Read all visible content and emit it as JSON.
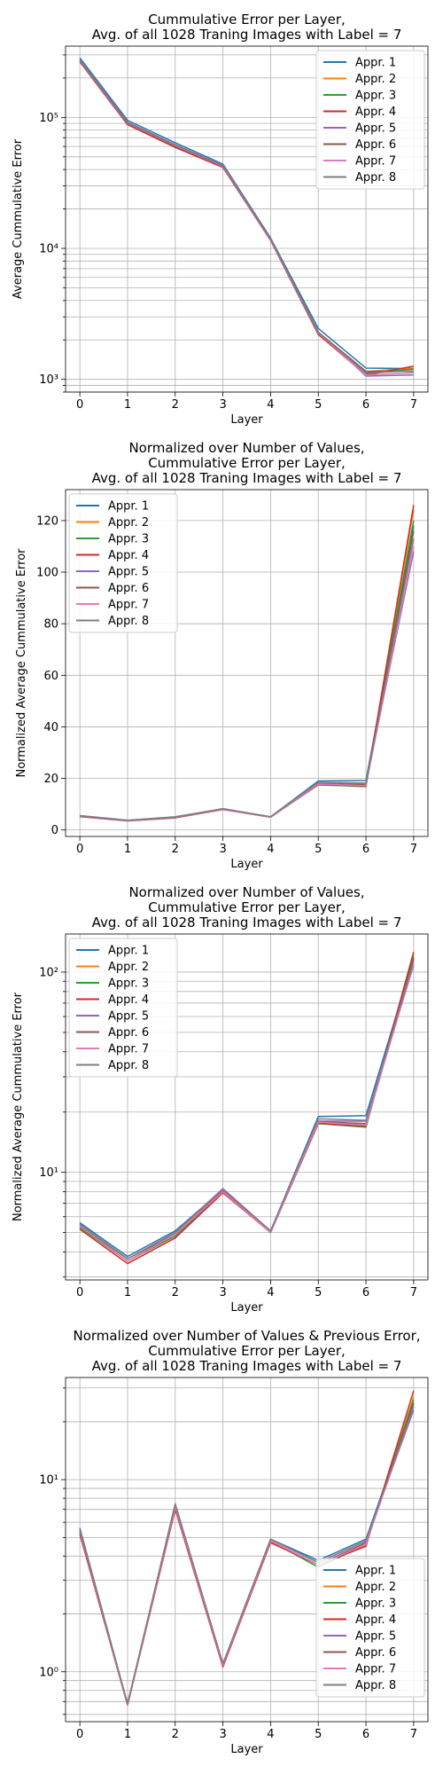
{
  "chart_data": [
    {
      "type": "line",
      "title": "Cummulative Error per Layer,\nAvg. of all 1028 Traning Images with Label = 7",
      "xlabel": "Layer",
      "ylabel": "Average Cummulative Error",
      "yscale": "log",
      "ylim": [
        800,
        350000
      ],
      "xlim": [
        -0.3,
        7.3
      ],
      "grid": true,
      "legend": "upper right",
      "x": [
        0,
        1,
        2,
        3,
        4,
        5,
        6,
        7
      ],
      "xticks": [
        "0",
        "1",
        "2",
        "3",
        "4",
        "5",
        "6",
        "7"
      ],
      "yticks": [
        {
          "value": 1000,
          "label": "10³"
        },
        {
          "value": 10000,
          "label": "10⁴"
        },
        {
          "value": 100000,
          "label": "10⁵"
        }
      ],
      "series": [
        {
          "name": "Appr. 1",
          "values": [
            285000,
            95000,
            64000,
            44000,
            12000,
            2450,
            1220,
            1210
          ]
        },
        {
          "name": "Appr. 2",
          "values": [
            275000,
            90000,
            61000,
            43000,
            11800,
            2300,
            1150,
            1220
          ]
        },
        {
          "name": "Appr. 3",
          "values": [
            270000,
            89000,
            60000,
            42000,
            11600,
            2250,
            1100,
            1200
          ]
        },
        {
          "name": "Appr. 4",
          "values": [
            265000,
            88000,
            59000,
            41500,
            11500,
            2200,
            1080,
            1260
          ]
        },
        {
          "name": "Appr. 5",
          "values": [
            275000,
            92000,
            62000,
            43000,
            11800,
            2300,
            1060,
            1080
          ]
        },
        {
          "name": "Appr. 6",
          "values": [
            272000,
            91000,
            61500,
            42500,
            11700,
            2280,
            1150,
            1150
          ]
        },
        {
          "name": "Appr. 7",
          "values": [
            270000,
            90000,
            61000,
            42200,
            11600,
            2250,
            1080,
            1120
          ]
        },
        {
          "name": "Appr. 8",
          "values": [
            272000,
            90500,
            61500,
            42500,
            11700,
            2270,
            1120,
            1160
          ]
        }
      ]
    },
    {
      "type": "line",
      "title": "Normalized over Number of Values,\nCummulative Error per Layer,\nAvg. of all 1028 Traning Images with Label = 7",
      "xlabel": "Layer",
      "ylabel": "Normalized Average Cummulative Error",
      "yscale": "linear",
      "ylim": [
        -2.5,
        132
      ],
      "xlim": [
        -0.3,
        7.3
      ],
      "grid": true,
      "legend": "upper left",
      "x": [
        0,
        1,
        2,
        3,
        4,
        5,
        6,
        7
      ],
      "xticks": [
        "0",
        "1",
        "2",
        "3",
        "4",
        "5",
        "6",
        "7"
      ],
      "yticks": [
        {
          "value": 0,
          "label": "0"
        },
        {
          "value": 20,
          "label": "20"
        },
        {
          "value": 40,
          "label": "40"
        },
        {
          "value": 60,
          "label": "60"
        },
        {
          "value": 80,
          "label": "80"
        },
        {
          "value": 100,
          "label": "100"
        },
        {
          "value": 120,
          "label": "120"
        }
      ],
      "series": [
        {
          "name": "Appr. 1",
          "values": [
            5.6,
            3.8,
            5.1,
            8.2,
            5.1,
            19.0,
            19.2,
            118
          ]
        },
        {
          "name": "Appr. 2",
          "values": [
            5.4,
            3.6,
            4.9,
            8.0,
            5.0,
            17.8,
            17.0,
            124
          ]
        },
        {
          "name": "Appr. 3",
          "values": [
            5.3,
            3.6,
            4.8,
            8.0,
            5.0,
            17.5,
            16.8,
            120
          ]
        },
        {
          "name": "Appr. 4",
          "values": [
            5.2,
            3.5,
            4.7,
            7.9,
            5.0,
            17.6,
            17.0,
            126
          ]
        },
        {
          "name": "Appr. 5",
          "values": [
            5.5,
            3.7,
            5.0,
            8.3,
            5.1,
            18.0,
            18.0,
            108
          ]
        },
        {
          "name": "Appr. 6",
          "values": [
            5.4,
            3.7,
            4.9,
            8.1,
            5.0,
            17.9,
            17.5,
            116
          ]
        },
        {
          "name": "Appr. 7",
          "values": [
            5.4,
            3.6,
            4.9,
            8.0,
            5.0,
            17.8,
            17.2,
            110
          ]
        },
        {
          "name": "Appr. 8",
          "values": [
            5.5,
            3.7,
            5.0,
            8.2,
            5.1,
            18.5,
            18.2,
            113
          ]
        }
      ]
    },
    {
      "type": "line",
      "title": "Normalized over Number of Values,\nCummulative Error per Layer,\nAvg. of all 1028 Traning Images with Label = 7",
      "xlabel": "Layer",
      "ylabel": "Normalized Average Cummulative Error",
      "yscale": "log",
      "ylim": [
        2.9,
        155
      ],
      "xlim": [
        -0.3,
        7.3
      ],
      "grid": true,
      "legend": "upper left",
      "x": [
        0,
        1,
        2,
        3,
        4,
        5,
        6,
        7
      ],
      "xticks": [
        "0",
        "1",
        "2",
        "3",
        "4",
        "5",
        "6",
        "7"
      ],
      "yticks": [
        {
          "value": 10,
          "label": "10¹"
        },
        {
          "value": 100,
          "label": "10²"
        }
      ],
      "series": [
        {
          "name": "Appr. 1",
          "values": [
            5.6,
            3.8,
            5.1,
            8.2,
            5.1,
            19.0,
            19.2,
            118
          ]
        },
        {
          "name": "Appr. 2",
          "values": [
            5.4,
            3.6,
            4.9,
            8.0,
            5.0,
            17.8,
            17.0,
            124
          ]
        },
        {
          "name": "Appr. 3",
          "values": [
            5.3,
            3.6,
            4.8,
            8.0,
            5.0,
            17.5,
            16.8,
            120
          ]
        },
        {
          "name": "Appr. 4",
          "values": [
            5.2,
            3.5,
            4.7,
            7.9,
            5.0,
            17.6,
            17.0,
            126
          ]
        },
        {
          "name": "Appr. 5",
          "values": [
            5.5,
            3.7,
            5.0,
            8.3,
            5.1,
            18.0,
            18.0,
            108
          ]
        },
        {
          "name": "Appr. 6",
          "values": [
            5.4,
            3.7,
            4.9,
            8.1,
            5.0,
            17.9,
            17.5,
            116
          ]
        },
        {
          "name": "Appr. 7",
          "values": [
            5.4,
            3.6,
            4.9,
            8.0,
            5.0,
            17.8,
            17.2,
            110
          ]
        },
        {
          "name": "Appr. 8",
          "values": [
            5.5,
            3.7,
            5.0,
            8.2,
            5.1,
            18.5,
            18.2,
            113
          ]
        }
      ]
    },
    {
      "type": "line",
      "title": "Normalized over Number of Values & Previous Error,\nCummulative Error per Layer,\nAvg. of all 1028 Traning Images with Label = 7",
      "xlabel": "Layer",
      "ylabel": "",
      "yscale": "log",
      "ylim": [
        0.55,
        34
      ],
      "xlim": [
        -0.3,
        7.3
      ],
      "grid": true,
      "legend": "lower right",
      "x": [
        0,
        1,
        2,
        3,
        4,
        5,
        6,
        7
      ],
      "xticks": [
        "0",
        "1",
        "2",
        "3",
        "4",
        "5",
        "6",
        "7"
      ],
      "yticks": [
        {
          "value": 1,
          "label": "10⁰"
        },
        {
          "value": 10,
          "label": "10¹"
        }
      ],
      "series": [
        {
          "name": "Appr. 1",
          "values": [
            5.6,
            0.68,
            7.4,
            1.1,
            4.9,
            3.8,
            4.9,
            25
          ]
        },
        {
          "name": "Appr. 2",
          "values": [
            5.4,
            0.67,
            7.2,
            1.08,
            4.8,
            3.6,
            4.6,
            27
          ]
        },
        {
          "name": "Appr. 3",
          "values": [
            5.3,
            0.67,
            7.1,
            1.07,
            4.8,
            3.5,
            4.6,
            26
          ]
        },
        {
          "name": "Appr. 4",
          "values": [
            5.2,
            0.67,
            7.0,
            1.06,
            4.7,
            3.6,
            4.5,
            29
          ]
        },
        {
          "name": "Appr. 5",
          "values": [
            5.5,
            0.68,
            7.5,
            1.1,
            4.9,
            3.7,
            4.8,
            23
          ]
        },
        {
          "name": "Appr. 6",
          "values": [
            5.4,
            0.68,
            7.3,
            1.09,
            4.8,
            3.6,
            4.7,
            25
          ]
        },
        {
          "name": "Appr. 7",
          "values": [
            5.4,
            0.67,
            7.2,
            1.08,
            4.8,
            3.6,
            4.6,
            24
          ]
        },
        {
          "name": "Appr. 8",
          "values": [
            5.5,
            0.68,
            7.4,
            1.1,
            4.9,
            3.7,
            4.8,
            24
          ]
        }
      ]
    }
  ],
  "colors": [
    "#1f77b4",
    "#ff7f0e",
    "#2ca02c",
    "#d62728",
    "#9467bd",
    "#8c564b",
    "#e377c2",
    "#7f7f7f"
  ]
}
